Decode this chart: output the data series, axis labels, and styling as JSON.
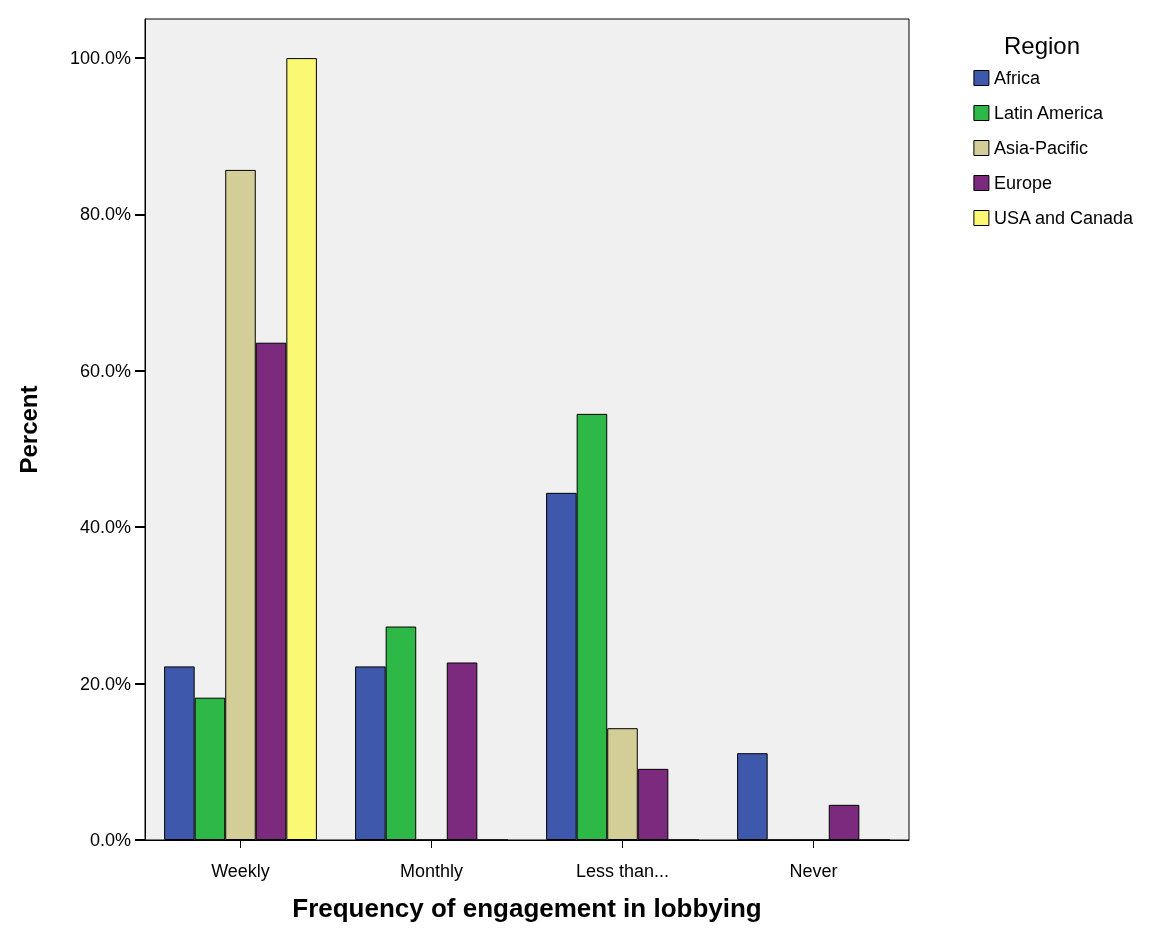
{
  "chart_data": {
    "type": "bar",
    "xlabel": "Frequency of engagement in lobbying",
    "ylabel": "Percent",
    "legend_title": "Region",
    "categories": [
      "Weekly",
      "Monthly",
      "Less than...",
      "Never"
    ],
    "series": [
      {
        "name": "Africa",
        "color": "#3e58ac",
        "values": [
          22.2,
          22.2,
          44.4,
          11.1
        ]
      },
      {
        "name": "Latin America",
        "color": "#2eb848",
        "values": [
          18.2,
          27.3,
          54.5,
          0
        ]
      },
      {
        "name": "Asia-Pacific",
        "color": "#d3ce97",
        "values": [
          85.7,
          0,
          14.3,
          0
        ]
      },
      {
        "name": "Europe",
        "color": "#7b2a7e",
        "values": [
          63.6,
          22.7,
          9.1,
          4.5
        ]
      },
      {
        "name": "USA and Canada",
        "color": "#fbf873",
        "values": [
          100,
          0,
          0,
          0
        ]
      }
    ],
    "ylim": [
      0,
      105
    ],
    "yticks": [
      {
        "value": 0,
        "label": "0.0%"
      },
      {
        "value": 20,
        "label": "20.0%"
      },
      {
        "value": 40,
        "label": "40.0%"
      },
      {
        "value": 60,
        "label": "60.0%"
      },
      {
        "value": 80,
        "label": "80.0%"
      },
      {
        "value": 100,
        "label": "100.0%"
      }
    ],
    "grid": false,
    "legend": "top right"
  }
}
